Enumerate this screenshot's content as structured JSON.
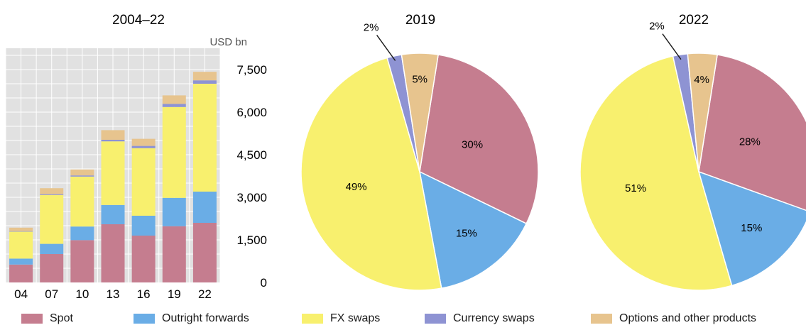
{
  "colors": {
    "spot": "#c57d8f",
    "outright_forwards": "#6aade6",
    "fx_swaps": "#f8f06e",
    "currency_swaps": "#8e93d3",
    "options": "#e7c48e",
    "plot_bg": "#e1e1e1",
    "grid": "#ffffff"
  },
  "legend": [
    {
      "key": "spot",
      "label": "Spot"
    },
    {
      "key": "outright_forwards",
      "label": "Outright forwards"
    },
    {
      "key": "fx_swaps",
      "label": "FX swaps"
    },
    {
      "key": "currency_swaps",
      "label": "Currency swaps"
    },
    {
      "key": "options",
      "label": "Options and other products"
    }
  ],
  "chart_data": [
    {
      "type": "bar",
      "stacked": true,
      "title": "2004–22",
      "ylabel": "USD bn",
      "categories": [
        "04",
        "07",
        "10",
        "13",
        "16",
        "19",
        "22"
      ],
      "ylim": [
        0,
        8250
      ],
      "yticks": [
        0,
        1500,
        3000,
        4500,
        6000,
        7500
      ],
      "ytick_labels": [
        "0",
        "1,500",
        "3,000",
        "4,500",
        "6,000",
        "7,500"
      ],
      "y_axis_position": "right",
      "grid": true,
      "series": [
        {
          "key": "spot",
          "name": "Spot",
          "values": [
            630,
            1000,
            1490,
            2050,
            1650,
            1980,
            2100
          ]
        },
        {
          "key": "outright_forwards",
          "name": "Outright forwards",
          "values": [
            210,
            360,
            480,
            680,
            700,
            1000,
            1100
          ]
        },
        {
          "key": "fx_swaps",
          "name": "FX swaps",
          "values": [
            950,
            1720,
            1760,
            2240,
            2380,
            3200,
            3800
          ]
        },
        {
          "key": "currency_swaps",
          "name": "Currency swaps",
          "values": [
            20,
            30,
            40,
            55,
            80,
            110,
            120
          ]
        },
        {
          "key": "options",
          "name": "Options and other products",
          "values": [
            120,
            210,
            210,
            340,
            250,
            300,
            300
          ]
        }
      ]
    },
    {
      "type": "pie",
      "title": "2019",
      "slices": [
        {
          "key": "spot",
          "name": "Spot",
          "value": 30,
          "label": "30%"
        },
        {
          "key": "outright_forwards",
          "name": "Outright forwards",
          "value": 15,
          "label": "15%"
        },
        {
          "key": "fx_swaps",
          "name": "FX swaps",
          "value": 49,
          "label": "49%"
        },
        {
          "key": "currency_swaps",
          "name": "Currency swaps",
          "value": 2,
          "label": "2%"
        },
        {
          "key": "options",
          "name": "Options and other products",
          "value": 5,
          "label": "5%"
        }
      ]
    },
    {
      "type": "pie",
      "title": "2022",
      "slices": [
        {
          "key": "spot",
          "name": "Spot",
          "value": 28,
          "label": "28%"
        },
        {
          "key": "outright_forwards",
          "name": "Outright forwards",
          "value": 15,
          "label": "15%"
        },
        {
          "key": "fx_swaps",
          "name": "FX swaps",
          "value": 51,
          "label": "51%"
        },
        {
          "key": "currency_swaps",
          "name": "Currency swaps",
          "value": 2,
          "label": "2%"
        },
        {
          "key": "options",
          "name": "Options and other products",
          "value": 4,
          "label": "4%"
        }
      ]
    }
  ]
}
